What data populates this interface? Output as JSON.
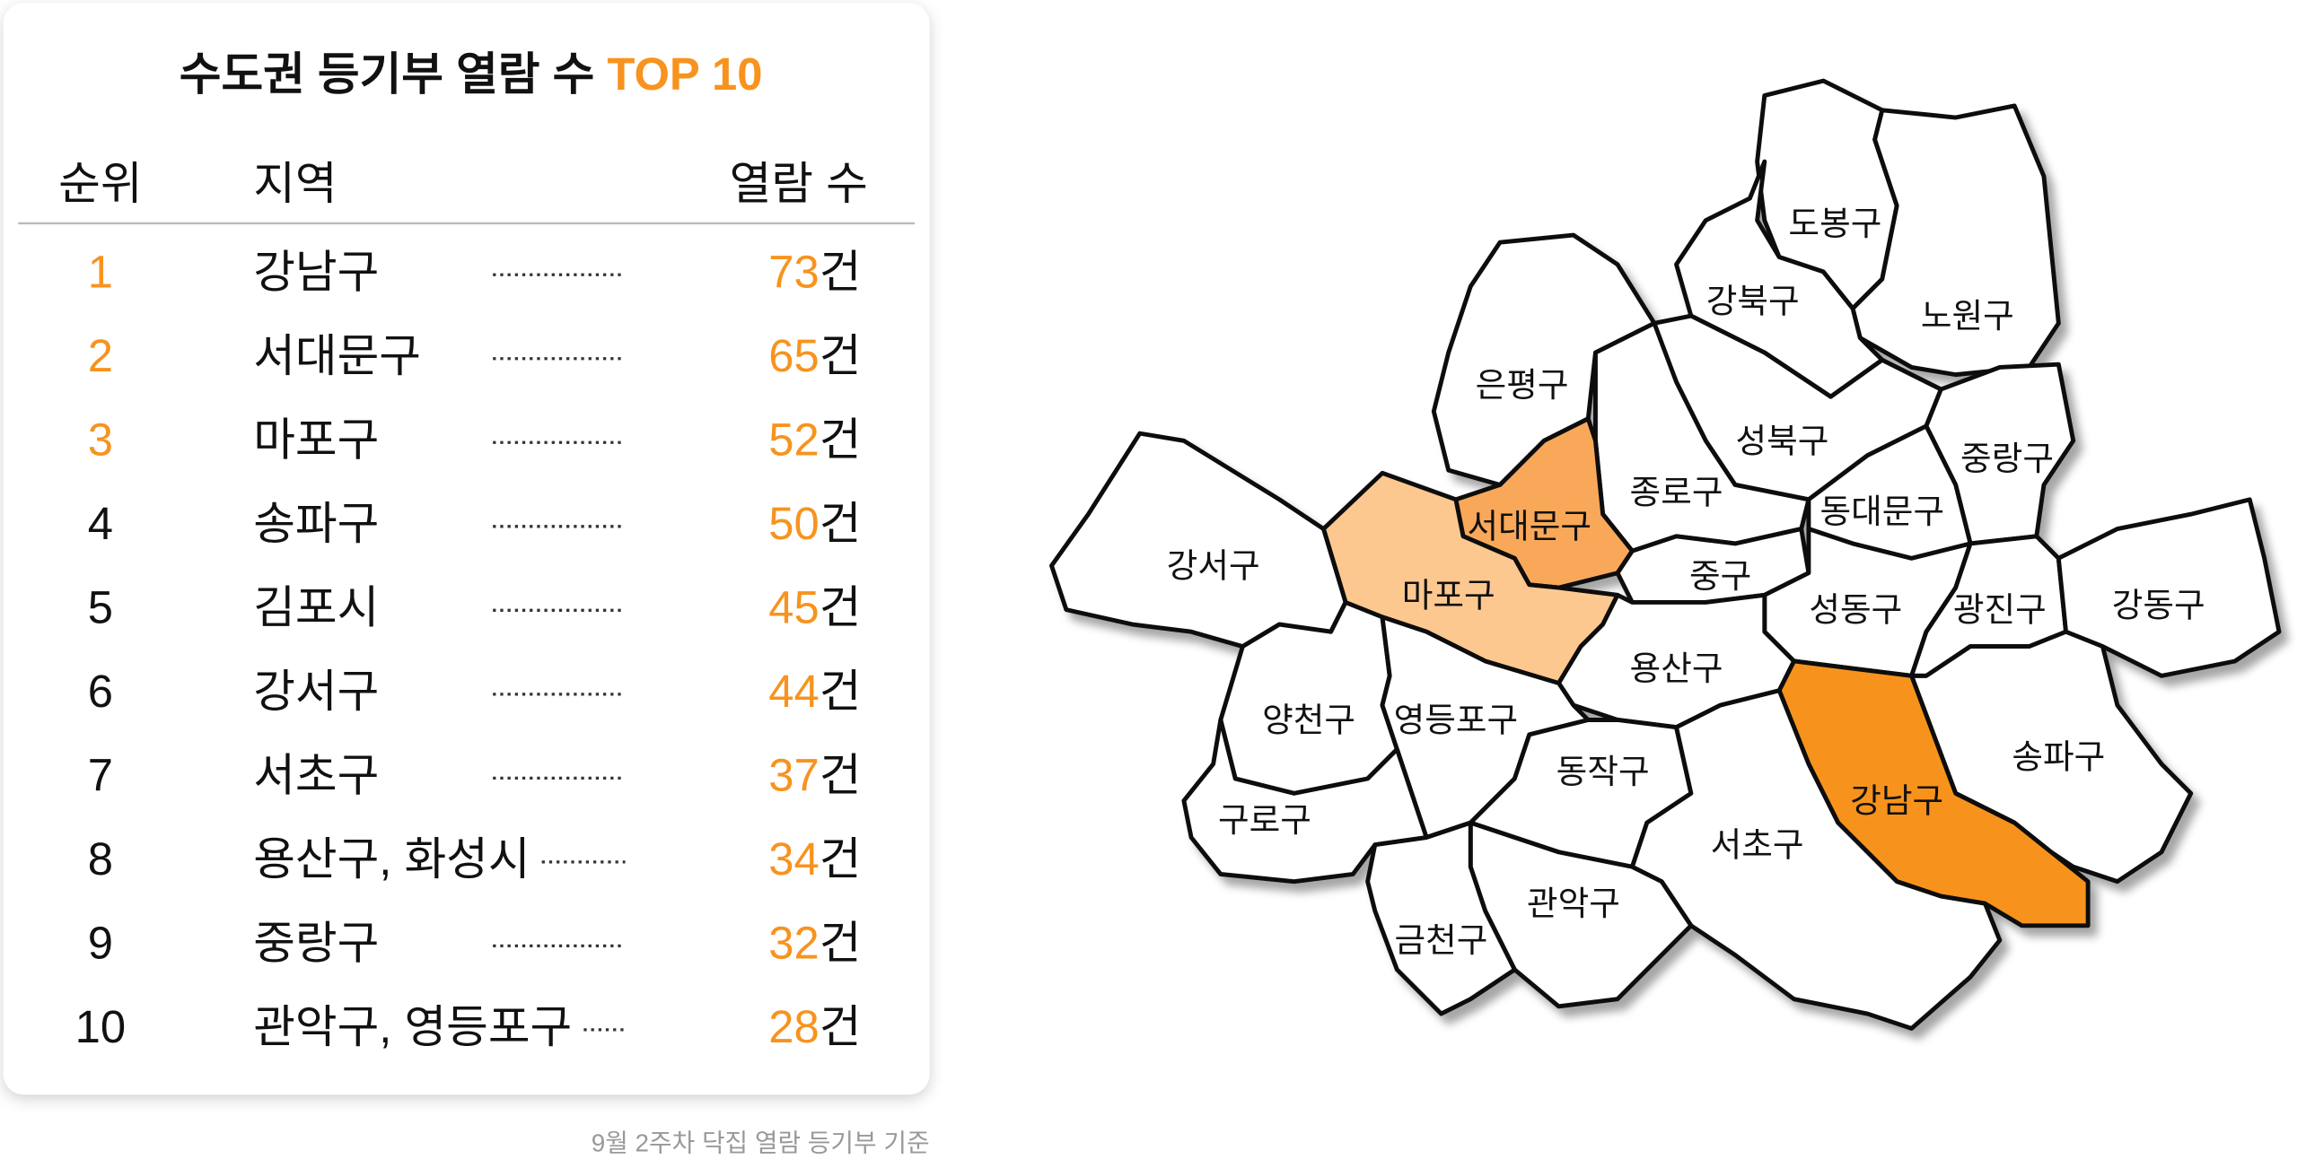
{
  "header": {
    "title": "수도권 등기부 열람 수",
    "title_highlight": "TOP 10"
  },
  "table": {
    "columns": [
      "순위",
      "지역",
      "열람 수"
    ],
    "unit": "건",
    "rows": [
      {
        "rank": 1,
        "region": "강남구",
        "count": 73
      },
      {
        "rank": 2,
        "region": "서대문구",
        "count": 65
      },
      {
        "rank": 3,
        "region": "마포구",
        "count": 52
      },
      {
        "rank": 4,
        "region": "송파구",
        "count": 50
      },
      {
        "rank": 5,
        "region": "김포시",
        "count": 45
      },
      {
        "rank": 6,
        "region": "강서구",
        "count": 44
      },
      {
        "rank": 7,
        "region": "서초구",
        "count": 37
      },
      {
        "rank": 8,
        "region": "용산구, 화성시",
        "count": 34
      },
      {
        "rank": 9,
        "region": "중랑구",
        "count": 32
      },
      {
        "rank": 10,
        "region": "관악구, 영등포구",
        "count": 28
      }
    ]
  },
  "footnote": "9월 2주차 닥집 열람 등기부 기준",
  "map": {
    "districts": [
      {
        "label": "도봉구",
        "color": "#ffffff"
      },
      {
        "label": "노원구",
        "color": "#ffffff"
      },
      {
        "label": "강북구",
        "color": "#ffffff"
      },
      {
        "label": "은평구",
        "color": "#ffffff"
      },
      {
        "label": "성북구",
        "color": "#ffffff"
      },
      {
        "label": "종로구",
        "color": "#ffffff"
      },
      {
        "label": "중랑구",
        "color": "#ffffff"
      },
      {
        "label": "동대문구",
        "color": "#ffffff"
      },
      {
        "label": "서대문구",
        "color": "#f9a85a"
      },
      {
        "label": "마포구",
        "color": "#fdc890"
      },
      {
        "label": "강서구",
        "color": "#ffffff"
      },
      {
        "label": "중구",
        "color": "#ffffff"
      },
      {
        "label": "성동구",
        "color": "#ffffff"
      },
      {
        "label": "광진구",
        "color": "#ffffff"
      },
      {
        "label": "강동구",
        "color": "#ffffff"
      },
      {
        "label": "용산구",
        "color": "#ffffff"
      },
      {
        "label": "양천구",
        "color": "#ffffff"
      },
      {
        "label": "영등포구",
        "color": "#ffffff"
      },
      {
        "label": "송파구",
        "color": "#ffffff"
      },
      {
        "label": "강남구",
        "color": "#f7931e"
      },
      {
        "label": "동작구",
        "color": "#ffffff"
      },
      {
        "label": "구로구",
        "color": "#ffffff"
      },
      {
        "label": "서초구",
        "color": "#ffffff"
      },
      {
        "label": "관악구",
        "color": "#ffffff"
      },
      {
        "label": "금천구",
        "color": "#ffffff"
      }
    ]
  }
}
